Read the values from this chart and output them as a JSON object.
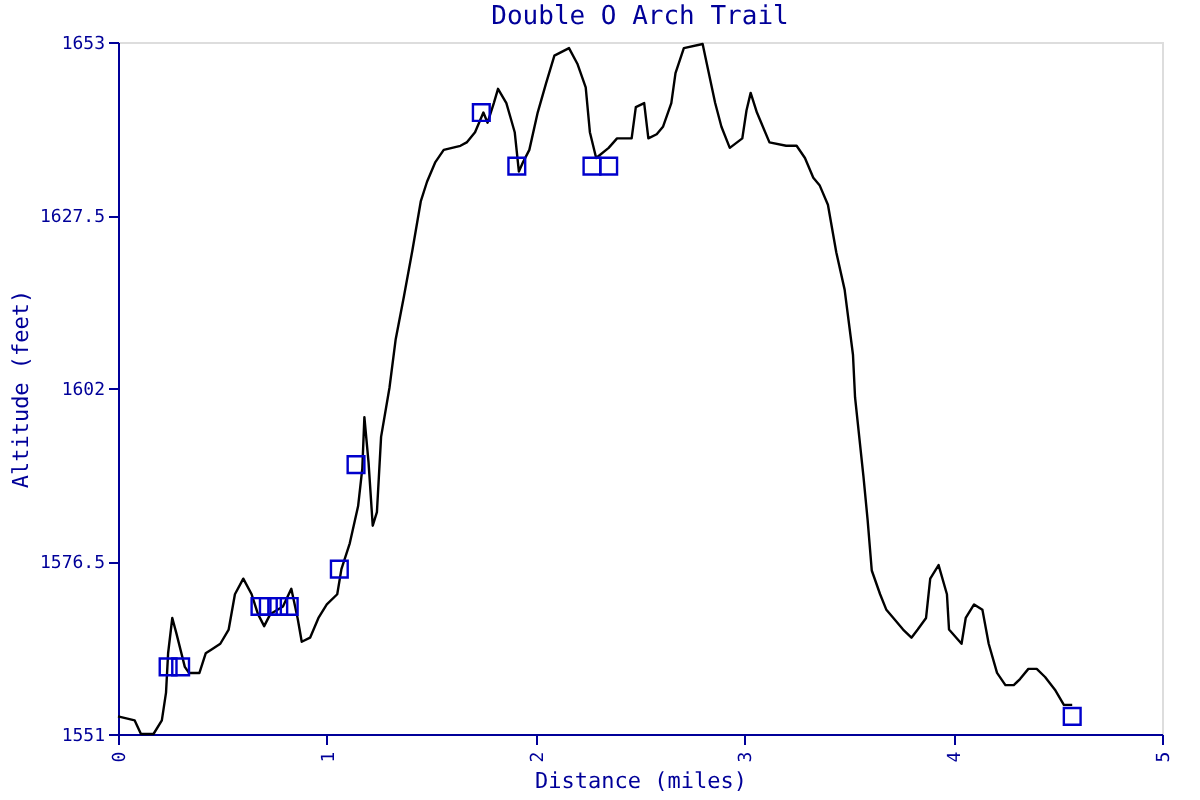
{
  "chart_data": {
    "type": "line",
    "title": "Double O Arch Trail",
    "xlabel": "Distance (miles)",
    "ylabel": "Altitude (feet)",
    "xlim": [
      0,
      5
    ],
    "xticks": [
      0,
      1,
      2,
      3,
      4,
      5
    ],
    "ylim": [
      1551,
      1653
    ],
    "yticks": [
      1551,
      1576.5,
      1602,
      1627.5,
      1653
    ],
    "grid": false,
    "series": [
      {
        "color": "#000000",
        "marker": "none",
        "line_style": "solid",
        "x": [
          0,
          0.08,
          0.11,
          0.17,
          0.21,
          0.23,
          0.24,
          0.26,
          0.28,
          0.32,
          0.34,
          0.39,
          0.42,
          0.45,
          0.49,
          0.53,
          0.56,
          0.6,
          0.64,
          0.67,
          0.7,
          0.73,
          0.79,
          0.83,
          0.86,
          0.88,
          0.92,
          0.96,
          1.0,
          1.05,
          1.07,
          1.11,
          1.15,
          1.17,
          1.18,
          1.2,
          1.22,
          1.24,
          1.26,
          1.3,
          1.33,
          1.37,
          1.41,
          1.45,
          1.48,
          1.52,
          1.56,
          1.64,
          1.67,
          1.71,
          1.75,
          1.77,
          1.8,
          1.82,
          1.86,
          1.9,
          1.92,
          1.94,
          1.97,
          2.01,
          2.05,
          2.09,
          2.16,
          2.2,
          2.24,
          2.26,
          2.29,
          2.35,
          2.39,
          2.46,
          2.48,
          2.52,
          2.54,
          2.58,
          2.61,
          2.65,
          2.67,
          2.71,
          2.8,
          2.82,
          2.86,
          2.89,
          2.93,
          2.99,
          3.01,
          3.03,
          3.06,
          3.12,
          3.2,
          3.25,
          3.29,
          3.33,
          3.36,
          3.4,
          3.44,
          3.48,
          3.52,
          3.53,
          3.57,
          3.59,
          3.61,
          3.65,
          3.68,
          3.76,
          3.8,
          3.83,
          3.87,
          3.89,
          3.93,
          3.97,
          3.98,
          4.04,
          4.06,
          4.1,
          4.14,
          4.17,
          4.21,
          4.25,
          4.29,
          4.32,
          4.36,
          4.4,
          4.44,
          4.49,
          4.53,
          4.57
        ],
        "values": [
          1553.6,
          1553.0,
          1551,
          1551,
          1553.0,
          1557.1,
          1562.9,
          1568.1,
          1565.8,
          1560.9,
          1560.0,
          1560.0,
          1562.9,
          1563.5,
          1564.3,
          1566.4,
          1571.6,
          1573.9,
          1571.6,
          1568.7,
          1566.9,
          1568.7,
          1569.8,
          1572.4,
          1568.1,
          1564.6,
          1565.2,
          1568.1,
          1570.1,
          1571.6,
          1575.3,
          1579.1,
          1584.6,
          1590.1,
          1597.7,
          1591.0,
          1581.7,
          1583.7,
          1594.8,
          1602.0,
          1609.2,
          1615.6,
          1622.3,
          1629.5,
          1632.4,
          1635.3,
          1637.1,
          1637.7,
          1638.2,
          1639.7,
          1642.6,
          1641.1,
          1644.0,
          1646.1,
          1644.0,
          1639.7,
          1633.9,
          1635.3,
          1637.1,
          1642.6,
          1646.9,
          1651.0,
          1652.1,
          1649.8,
          1646.3,
          1639.7,
          1635.9,
          1637.4,
          1638.8,
          1638.8,
          1643.4,
          1644.0,
          1638.8,
          1639.4,
          1640.5,
          1644.0,
          1648.4,
          1652.1,
          1652.7,
          1649.8,
          1644.0,
          1640.5,
          1637.4,
          1638.8,
          1642.9,
          1645.5,
          1642.6,
          1638.2,
          1637.7,
          1637.7,
          1635.9,
          1633.0,
          1631.9,
          1629.0,
          1622.0,
          1616.5,
          1606.9,
          1600.6,
          1589.0,
          1582.6,
          1575.1,
          1571.6,
          1569.3,
          1566.4,
          1565.2,
          1566.4,
          1568.1,
          1573.9,
          1575.9,
          1571.6,
          1566.4,
          1564.3,
          1568.1,
          1570.1,
          1569.3,
          1564.3,
          1560.0,
          1558.2,
          1558.2,
          1559.1,
          1560.6,
          1560.6,
          1559.4,
          1557.4,
          1555.3,
          1555.3
        ]
      },
      {
        "type": "scatter",
        "color": "#0000cc",
        "marker": "square",
        "x": [
          0.24,
          0.3,
          0.68,
          0.72,
          0.77,
          0.82,
          1.06,
          1.14,
          1.74,
          1.91,
          2.27,
          2.35,
          4.57
        ],
        "values": [
          1560.9,
          1560.9,
          1569.8,
          1569.8,
          1569.8,
          1569.8,
          1575.3,
          1590.7,
          1642.6,
          1634.7,
          1634.7,
          1634.7,
          1553.6
        ]
      }
    ]
  }
}
